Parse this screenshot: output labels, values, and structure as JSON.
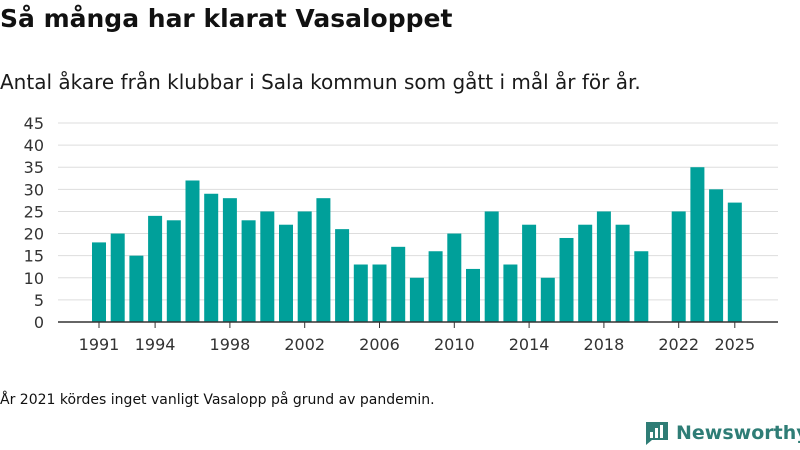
{
  "header": {
    "title": "Så många har klarat Vasaloppet",
    "subtitle": "Antal åkare från klubbar i Sala kommun som gått i mål år för år."
  },
  "footer": {
    "note": "År 2021 kördes inget vanligt Vasalopp på grund av pandemin.",
    "brand": "Newsworthy"
  },
  "colors": {
    "bar": "#00a09a",
    "grid": "#dddddd",
    "axis": "#333333",
    "brand": "#2f7d76"
  },
  "chart_data": {
    "type": "bar",
    "title": "Så många har klarat Vasaloppet",
    "subtitle": "Antal åkare från klubbar i Sala kommun som gått i mål år för år.",
    "xlabel": "",
    "ylabel": "",
    "ylim": [
      0,
      45
    ],
    "yticks": [
      0,
      5,
      10,
      15,
      20,
      25,
      30,
      35,
      40,
      45
    ],
    "xtick_labels": [
      "1991",
      "1994",
      "1998",
      "2002",
      "2006",
      "2010",
      "2014",
      "2018",
      "2022",
      "2025"
    ],
    "grid": true,
    "categories": [
      1991,
      1992,
      1993,
      1994,
      1995,
      1996,
      1997,
      1998,
      1999,
      2000,
      2001,
      2002,
      2003,
      2004,
      2005,
      2006,
      2007,
      2008,
      2009,
      2010,
      2011,
      2012,
      2013,
      2014,
      2015,
      2016,
      2017,
      2018,
      2019,
      2020,
      2021,
      2022,
      2023,
      2024,
      2025
    ],
    "values": [
      18,
      20,
      15,
      24,
      23,
      32,
      29,
      28,
      23,
      25,
      22,
      25,
      28,
      21,
      13,
      13,
      17,
      10,
      16,
      20,
      12,
      25,
      13,
      22,
      10,
      19,
      22,
      25,
      22,
      16,
      null,
      25,
      35,
      30,
      27
    ]
  }
}
